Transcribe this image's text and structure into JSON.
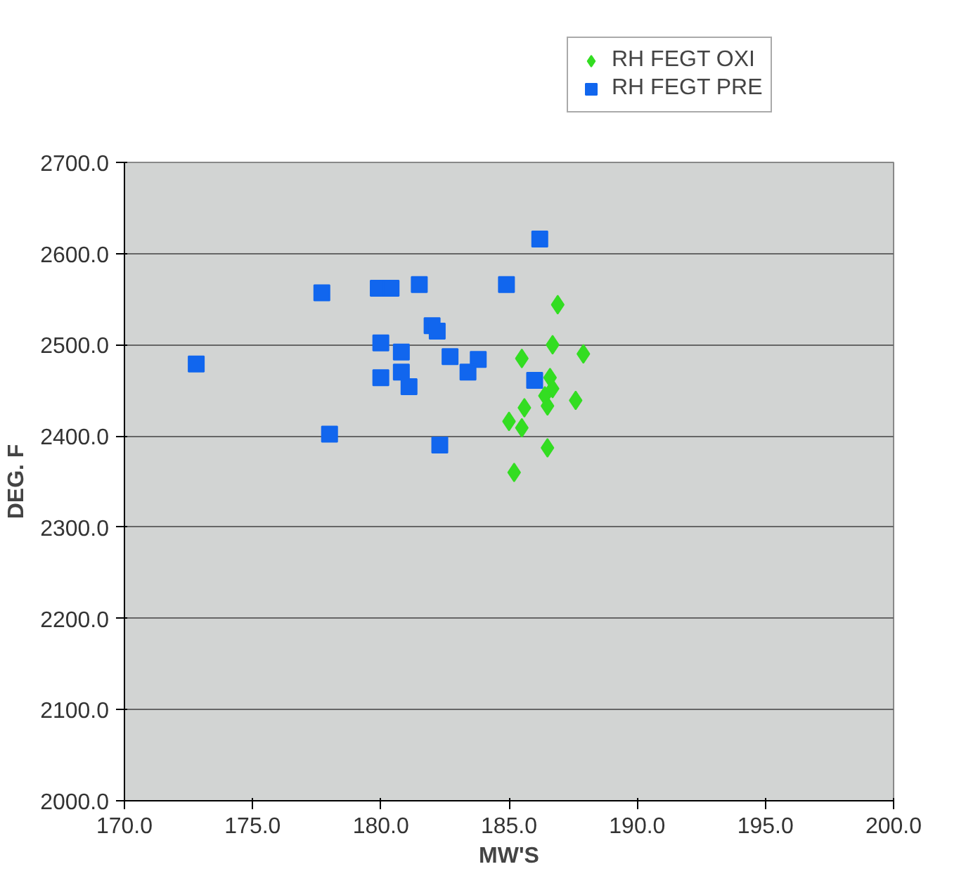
{
  "chart_data": {
    "type": "scatter",
    "xlabel": "MW'S",
    "ylabel": "DEG. F",
    "xlim": [
      170,
      200
    ],
    "xticks": [
      {
        "value": 170,
        "label": "170.0"
      },
      {
        "value": 175,
        "label": "175.0"
      },
      {
        "value": 180,
        "label": "180.0"
      },
      {
        "value": 185,
        "label": "185.0"
      },
      {
        "value": 190,
        "label": "190.0"
      },
      {
        "value": 195,
        "label": "195.0"
      },
      {
        "value": 200,
        "label": "200.0"
      }
    ],
    "ylim": [
      2000,
      2700
    ],
    "yticks": [
      {
        "value": 2000,
        "label": "2000.0"
      },
      {
        "value": 2100,
        "label": "2100.0"
      },
      {
        "value": 2200,
        "label": "2200.0"
      },
      {
        "value": 2300,
        "label": "2300.0"
      },
      {
        "value": 2400,
        "label": "2400.0"
      },
      {
        "value": 2500,
        "label": "2500.0"
      },
      {
        "value": 2600,
        "label": "2600.0"
      },
      {
        "value": 2700,
        "label": "2700.0"
      }
    ],
    "grid": "y",
    "legend": "top",
    "series": [
      {
        "name": "RH FEGT OXI",
        "color": "#33dd22",
        "marker": "diamond",
        "x": [
          186.9,
          186.7,
          187.9,
          185.5,
          186.6,
          186.7,
          187.6,
          186.5,
          185.6,
          185.0,
          185.5,
          186.5,
          185.2,
          186.4
        ],
        "values": [
          2544,
          2500,
          2490,
          2485,
          2464,
          2452,
          2439,
          2433,
          2431,
          2416,
          2409,
          2387,
          2360,
          2444
        ]
      },
      {
        "name": "RH FEGT PRE",
        "color": "#1166ee",
        "marker": "square",
        "x": [
          186.2,
          177.7,
          179.9,
          180.4,
          181.5,
          184.9,
          182.0,
          182.2,
          172.8,
          180.0,
          180.8,
          182.7,
          183.8,
          183.4,
          180.0,
          180.8,
          181.1,
          186.0,
          178.0,
          182.3
        ],
        "values": [
          2616,
          2557,
          2562,
          2562,
          2566,
          2566,
          2521,
          2515,
          2479,
          2502,
          2492,
          2487,
          2484,
          2470,
          2464,
          2470,
          2454,
          2461,
          2402,
          2390
        ]
      }
    ]
  }
}
